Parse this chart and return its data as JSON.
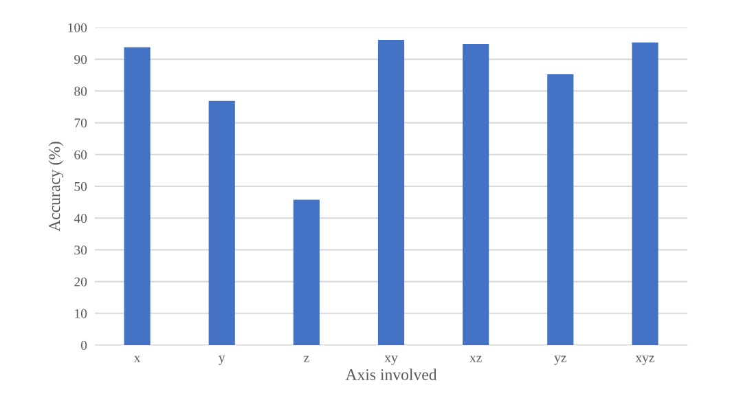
{
  "chart_data": {
    "type": "bar",
    "xlabel": "Axis involved",
    "ylabel": "Accuracy (%)",
    "categories": [
      "x",
      "y",
      "z",
      "xy",
      "xz",
      "yz",
      "xyz"
    ],
    "values": [
      93.8,
      76.9,
      45.8,
      96.1,
      94.8,
      85.3,
      95.3
    ],
    "color": "#4472c4",
    "ylim": [
      0,
      100
    ],
    "yticks": [
      0,
      10,
      20,
      30,
      40,
      50,
      60,
      70,
      80,
      90,
      100
    ],
    "grid": "y"
  }
}
